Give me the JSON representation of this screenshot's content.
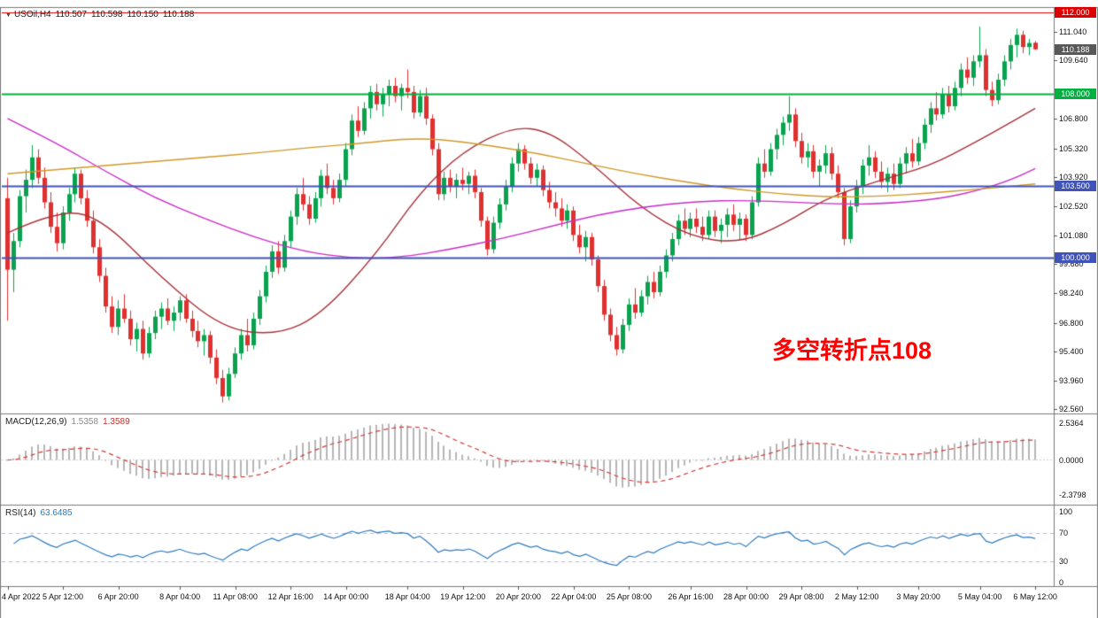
{
  "header": {
    "symbol": "USOil,H4",
    "open": "110.507",
    "high": "110.598",
    "low": "110.150",
    "close": "110.188"
  },
  "annotation": {
    "text": "多空转折点108",
    "color": "#ff0000"
  },
  "chart_data": {
    "type": "candlestick",
    "symbol": "USOil",
    "timeframe": "H4",
    "price_axis_ticks": [
      "111.040",
      "109.640",
      "106.800",
      "105.320",
      "103.920",
      "102.520",
      "101.080",
      "99.680",
      "98.240",
      "96.800",
      "95.400",
      "93.960",
      "92.560"
    ],
    "hlines": [
      {
        "price": 112.0,
        "label": "112.000",
        "color": "#dd0000",
        "width": 1.2
      },
      {
        "price": 108.0,
        "label": "108.000",
        "color": "#00b140",
        "width": 2
      },
      {
        "price": 103.5,
        "label": "103.500",
        "color": "#4053b8",
        "width": 2
      },
      {
        "price": 100.0,
        "label": "100.000",
        "color": "#4053b8",
        "width": 2
      }
    ],
    "current_price": {
      "value": 110.188,
      "label": "110.188",
      "bg": "#585858"
    },
    "colors": {
      "bull": "#0aa24f",
      "bear": "#e03131"
    },
    "candles": [
      [
        102.9,
        103.9,
        96.9,
        99.4
      ],
      [
        99.4,
        101.2,
        98.3,
        100.8
      ],
      [
        100.8,
        103.3,
        100.5,
        103.0
      ],
      [
        103.0,
        104.3,
        102.2,
        103.8
      ],
      [
        103.8,
        105.5,
        103.4,
        104.9
      ],
      [
        104.9,
        105.3,
        103.6,
        103.9
      ],
      [
        103.9,
        104.4,
        102.4,
        102.7
      ],
      [
        102.7,
        103.2,
        101.2,
        101.5
      ],
      [
        101.5,
        102.2,
        100.3,
        100.7
      ],
      [
        100.7,
        102.5,
        100.4,
        102.2
      ],
      [
        102.2,
        103.4,
        101.8,
        103.1
      ],
      [
        103.1,
        104.4,
        102.7,
        104.1
      ],
      [
        104.1,
        104.3,
        102.6,
        102.9
      ],
      [
        102.9,
        103.3,
        101.5,
        101.8
      ],
      [
        101.8,
        102.3,
        100.2,
        100.5
      ],
      [
        100.5,
        100.9,
        98.8,
        99.1
      ],
      [
        99.1,
        99.5,
        97.3,
        97.6
      ],
      [
        97.6,
        98.1,
        96.3,
        96.6
      ],
      [
        96.6,
        97.9,
        96.2,
        97.5
      ],
      [
        97.5,
        98.2,
        96.8,
        97.0
      ],
      [
        97.0,
        97.4,
        95.7,
        96.0
      ],
      [
        96.0,
        96.8,
        95.4,
        96.5
      ],
      [
        96.5,
        96.9,
        95.0,
        95.3
      ],
      [
        95.3,
        96.6,
        95.1,
        96.3
      ],
      [
        96.3,
        97.4,
        96.0,
        97.1
      ],
      [
        97.1,
        97.8,
        96.5,
        97.5
      ],
      [
        97.5,
        98.0,
        96.7,
        96.9
      ],
      [
        96.9,
        97.6,
        96.4,
        97.3
      ],
      [
        97.3,
        98.1,
        96.9,
        97.9
      ],
      [
        97.9,
        98.2,
        96.8,
        97.0
      ],
      [
        97.0,
        97.4,
        96.1,
        96.4
      ],
      [
        96.4,
        96.9,
        95.6,
        95.9
      ],
      [
        95.9,
        96.5,
        95.2,
        96.2
      ],
      [
        96.2,
        96.4,
        94.8,
        95.1
      ],
      [
        95.1,
        95.5,
        93.8,
        94.1
      ],
      [
        94.1,
        94.5,
        92.9,
        93.2
      ],
      [
        93.2,
        94.6,
        93.0,
        94.3
      ],
      [
        94.3,
        95.6,
        94.1,
        95.3
      ],
      [
        95.3,
        96.5,
        95.0,
        96.2
      ],
      [
        96.2,
        97.0,
        95.4,
        95.7
      ],
      [
        95.7,
        97.3,
        95.5,
        97.0
      ],
      [
        97.0,
        98.4,
        96.7,
        98.1
      ],
      [
        98.1,
        99.6,
        97.8,
        99.3
      ],
      [
        99.3,
        100.6,
        99.0,
        100.3
      ],
      [
        100.3,
        100.8,
        99.2,
        99.5
      ],
      [
        99.5,
        101.1,
        99.3,
        100.8
      ],
      [
        100.8,
        102.3,
        100.5,
        102.0
      ],
      [
        102.0,
        103.4,
        101.6,
        103.1
      ],
      [
        103.1,
        103.9,
        102.3,
        102.6
      ],
      [
        102.6,
        103.0,
        101.6,
        101.9
      ],
      [
        101.9,
        103.2,
        101.7,
        102.9
      ],
      [
        102.9,
        104.3,
        102.5,
        104.0
      ],
      [
        104.0,
        104.6,
        103.1,
        103.4
      ],
      [
        103.4,
        103.8,
        102.6,
        102.9
      ],
      [
        102.9,
        104.1,
        102.7,
        103.8
      ],
      [
        103.8,
        105.6,
        103.5,
        105.3
      ],
      [
        105.3,
        107.0,
        105.0,
        106.7
      ],
      [
        106.7,
        107.4,
        105.9,
        106.2
      ],
      [
        106.2,
        107.6,
        106.0,
        107.3
      ],
      [
        107.3,
        108.4,
        106.8,
        108.1
      ],
      [
        108.1,
        108.5,
        107.2,
        107.5
      ],
      [
        107.5,
        108.3,
        106.9,
        108.0
      ],
      [
        108.0,
        108.7,
        107.4,
        108.4
      ],
      [
        108.4,
        108.8,
        107.6,
        107.9
      ],
      [
        107.9,
        108.5,
        107.2,
        108.3
      ],
      [
        108.3,
        109.2,
        107.8,
        108.1
      ],
      [
        108.1,
        108.4,
        106.8,
        107.1
      ],
      [
        107.1,
        108.2,
        106.9,
        107.9
      ],
      [
        107.9,
        108.3,
        106.5,
        106.8
      ],
      [
        106.8,
        107.0,
        105.0,
        105.3
      ],
      [
        105.3,
        105.6,
        102.8,
        103.1
      ],
      [
        103.1,
        104.2,
        102.8,
        103.9
      ],
      [
        103.9,
        104.3,
        103.2,
        103.5
      ],
      [
        103.5,
        104.1,
        102.9,
        103.8
      ],
      [
        103.8,
        104.4,
        103.3,
        103.6
      ],
      [
        103.6,
        104.2,
        103.1,
        104.0
      ],
      [
        104.0,
        104.3,
        102.9,
        103.2
      ],
      [
        103.2,
        103.4,
        101.5,
        101.8
      ],
      [
        101.8,
        102.0,
        100.1,
        100.4
      ],
      [
        100.4,
        102.0,
        100.2,
        101.7
      ],
      [
        101.7,
        102.9,
        101.4,
        102.6
      ],
      [
        102.6,
        103.8,
        102.3,
        103.5
      ],
      [
        103.5,
        104.9,
        103.2,
        104.6
      ],
      [
        104.6,
        105.6,
        104.2,
        105.3
      ],
      [
        105.3,
        105.5,
        104.3,
        104.6
      ],
      [
        104.6,
        104.9,
        103.6,
        103.9
      ],
      [
        103.9,
        104.6,
        103.5,
        104.3
      ],
      [
        104.3,
        104.5,
        103.0,
        103.3
      ],
      [
        103.3,
        103.7,
        102.4,
        102.7
      ],
      [
        102.7,
        103.2,
        102.0,
        102.4
      ],
      [
        102.4,
        102.9,
        101.5,
        101.8
      ],
      [
        101.8,
        102.6,
        101.4,
        102.3
      ],
      [
        102.3,
        102.5,
        100.8,
        101.1
      ],
      [
        101.1,
        101.6,
        100.2,
        100.5
      ],
      [
        100.5,
        101.3,
        99.8,
        101.0
      ],
      [
        101.0,
        101.2,
        99.6,
        99.9
      ],
      [
        99.9,
        100.1,
        98.3,
        98.6
      ],
      [
        98.6,
        98.9,
        96.9,
        97.2
      ],
      [
        97.2,
        97.5,
        95.9,
        96.2
      ],
      [
        96.2,
        96.6,
        95.2,
        95.5
      ],
      [
        95.5,
        97.0,
        95.3,
        96.7
      ],
      [
        96.7,
        98.0,
        96.4,
        97.7
      ],
      [
        97.7,
        98.5,
        97.0,
        97.3
      ],
      [
        97.3,
        98.4,
        97.1,
        98.1
      ],
      [
        98.1,
        99.1,
        97.7,
        98.8
      ],
      [
        98.8,
        99.3,
        98.0,
        98.3
      ],
      [
        98.3,
        99.6,
        98.1,
        99.3
      ],
      [
        99.3,
        100.4,
        99.0,
        100.1
      ],
      [
        100.1,
        101.2,
        99.8,
        100.9
      ],
      [
        100.9,
        102.1,
        100.6,
        101.8
      ],
      [
        101.8,
        102.4,
        101.1,
        101.4
      ],
      [
        101.4,
        102.2,
        101.0,
        101.9
      ],
      [
        101.9,
        102.4,
        101.2,
        101.5
      ],
      [
        101.5,
        102.0,
        100.8,
        101.1
      ],
      [
        101.1,
        102.3,
        100.9,
        102.0
      ],
      [
        102.0,
        102.3,
        101.0,
        101.3
      ],
      [
        101.3,
        101.9,
        100.7,
        101.6
      ],
      [
        101.6,
        102.4,
        101.0,
        102.1
      ],
      [
        102.1,
        102.6,
        101.3,
        101.6
      ],
      [
        101.6,
        102.2,
        100.9,
        101.9
      ],
      [
        101.9,
        102.1,
        100.8,
        101.1
      ],
      [
        101.1,
        103.0,
        100.9,
        102.7
      ],
      [
        102.7,
        104.9,
        102.5,
        104.6
      ],
      [
        104.6,
        105.3,
        103.9,
        104.2
      ],
      [
        104.2,
        105.6,
        104.0,
        105.3
      ],
      [
        105.3,
        106.3,
        104.8,
        106.0
      ],
      [
        106.0,
        106.9,
        105.5,
        106.6
      ],
      [
        106.6,
        107.9,
        106.2,
        107.0
      ],
      [
        107.0,
        107.3,
        105.4,
        105.7
      ],
      [
        105.7,
        106.1,
        104.6,
        104.9
      ],
      [
        104.9,
        105.6,
        104.4,
        105.2
      ],
      [
        105.2,
        105.5,
        103.9,
        104.2
      ],
      [
        104.2,
        104.8,
        103.5,
        104.5
      ],
      [
        104.5,
        105.5,
        104.1,
        105.1
      ],
      [
        105.1,
        105.4,
        103.8,
        104.1
      ],
      [
        104.1,
        104.5,
        102.9,
        103.2
      ],
      [
        103.2,
        103.4,
        100.6,
        100.9
      ],
      [
        100.9,
        102.8,
        100.7,
        102.5
      ],
      [
        102.5,
        103.8,
        102.2,
        103.5
      ],
      [
        103.5,
        104.8,
        103.1,
        104.5
      ],
      [
        104.5,
        105.5,
        104.0,
        104.9
      ],
      [
        104.9,
        105.2,
        103.9,
        104.2
      ],
      [
        104.2,
        104.7,
        103.4,
        103.7
      ],
      [
        103.7,
        104.4,
        103.2,
        104.1
      ],
      [
        104.1,
        104.6,
        103.3,
        103.6
      ],
      [
        103.6,
        104.9,
        103.4,
        104.6
      ],
      [
        104.6,
        105.4,
        104.1,
        105.1
      ],
      [
        105.1,
        105.8,
        104.4,
        104.7
      ],
      [
        104.7,
        105.9,
        104.5,
        105.6
      ],
      [
        105.6,
        106.8,
        105.3,
        106.5
      ],
      [
        106.5,
        107.6,
        106.1,
        107.3
      ],
      [
        107.3,
        108.1,
        106.7,
        107.0
      ],
      [
        107.0,
        108.3,
        106.8,
        108.0
      ],
      [
        108.0,
        108.4,
        107.1,
        107.4
      ],
      [
        107.4,
        108.6,
        107.2,
        108.3
      ],
      [
        108.3,
        109.5,
        107.9,
        109.2
      ],
      [
        109.2,
        109.8,
        108.5,
        108.8
      ],
      [
        108.8,
        109.9,
        108.4,
        109.6
      ],
      [
        109.6,
        111.3,
        109.3,
        109.9
      ],
      [
        109.9,
        110.2,
        107.9,
        108.2
      ],
      [
        108.2,
        108.6,
        107.4,
        107.7
      ],
      [
        107.7,
        109.0,
        107.5,
        108.7
      ],
      [
        108.7,
        109.9,
        108.4,
        109.6
      ],
      [
        109.6,
        110.7,
        109.2,
        110.4
      ],
      [
        110.4,
        111.2,
        109.8,
        110.9
      ],
      [
        110.9,
        111.1,
        110.0,
        110.3
      ],
      [
        110.3,
        110.7,
        109.9,
        110.5
      ],
      [
        110.51,
        110.6,
        110.15,
        110.19
      ]
    ],
    "ma_lines": [
      {
        "name": "ma-dark-red",
        "color": "#a8323a",
        "points": [
          [
            0,
            101.2
          ],
          [
            8,
            102.3
          ],
          [
            15,
            102.0
          ],
          [
            25,
            99.0
          ],
          [
            35,
            96.5
          ],
          [
            44,
            96.2
          ],
          [
            51,
            97.2
          ],
          [
            60,
            100.2
          ],
          [
            67,
            103.2
          ],
          [
            74,
            105.2
          ],
          [
            82,
            106.4
          ],
          [
            88,
            106.2
          ],
          [
            95,
            104.6
          ],
          [
            103,
            102.4
          ],
          [
            111,
            101.0
          ],
          [
            119,
            100.7
          ],
          [
            126,
            101.6
          ],
          [
            133,
            102.9
          ],
          [
            141,
            103.7
          ],
          [
            150,
            104.5
          ],
          [
            157,
            105.6
          ],
          [
            163,
            106.6
          ],
          [
            167,
            107.3
          ]
        ]
      },
      {
        "name": "ma-magenta",
        "color": "#c92cc9",
        "points": [
          [
            0,
            106.8
          ],
          [
            8,
            105.6
          ],
          [
            16,
            104.2
          ],
          [
            24,
            102.9
          ],
          [
            32,
            101.9
          ],
          [
            40,
            101.0
          ],
          [
            48,
            100.3
          ],
          [
            56,
            99.95
          ],
          [
            64,
            100.0
          ],
          [
            72,
            100.4
          ],
          [
            80,
            100.9
          ],
          [
            88,
            101.5
          ],
          [
            96,
            102.1
          ],
          [
            104,
            102.5
          ],
          [
            112,
            102.75
          ],
          [
            120,
            102.8
          ],
          [
            128,
            102.7
          ],
          [
            136,
            102.6
          ],
          [
            144,
            102.65
          ],
          [
            152,
            102.9
          ],
          [
            158,
            103.3
          ],
          [
            163,
            103.8
          ],
          [
            167,
            104.35
          ]
        ]
      },
      {
        "name": "ma-orange",
        "color": "#cf9a28",
        "points": [
          [
            0,
            104.1
          ],
          [
            10,
            104.35
          ],
          [
            20,
            104.6
          ],
          [
            30,
            104.85
          ],
          [
            40,
            105.1
          ],
          [
            50,
            105.4
          ],
          [
            58,
            105.6
          ],
          [
            64,
            105.8
          ],
          [
            70,
            105.8
          ],
          [
            78,
            105.5
          ],
          [
            86,
            105.1
          ],
          [
            94,
            104.6
          ],
          [
            102,
            104.1
          ],
          [
            110,
            103.7
          ],
          [
            118,
            103.35
          ],
          [
            126,
            103.1
          ],
          [
            134,
            102.95
          ],
          [
            142,
            103.0
          ],
          [
            150,
            103.15
          ],
          [
            158,
            103.35
          ],
          [
            167,
            103.6
          ]
        ]
      }
    ],
    "time_labels": [
      {
        "text": "4 Apr 2022",
        "i": 0
      },
      {
        "text": "5 Apr 12:00",
        "i": 9
      },
      {
        "text": "6 Apr 20:00",
        "i": 18
      },
      {
        "text": "8 Apr 04:00",
        "i": 28
      },
      {
        "text": "11 Apr 08:00",
        "i": 37
      },
      {
        "text": "12 Apr 16:00",
        "i": 46
      },
      {
        "text": "14 Apr 00:00",
        "i": 55
      },
      {
        "text": "18 Apr 04:00",
        "i": 65
      },
      {
        "text": "19 Apr 12:00",
        "i": 74
      },
      {
        "text": "20 Apr 20:00",
        "i": 83
      },
      {
        "text": "22 Apr 04:00",
        "i": 92
      },
      {
        "text": "25 Apr 08:00",
        "i": 101
      },
      {
        "text": "26 Apr 16:00",
        "i": 111
      },
      {
        "text": "28 Apr 00:00",
        "i": 120
      },
      {
        "text": "29 Apr 08:00",
        "i": 129
      },
      {
        "text": "2 May 12:00",
        "i": 138
      },
      {
        "text": "3 May 20:00",
        "i": 148
      },
      {
        "text": "5 May 04:00",
        "i": 158
      },
      {
        "text": "6 May 12:00",
        "i": 167
      }
    ],
    "macd": {
      "label": "MACD(12,26,9)",
      "value_main": "1.5358",
      "value_signal": "1.3589",
      "fast": 12,
      "slow": 26,
      "signal": 9,
      "axis": [
        "2.5364",
        "0.0000",
        "-2.3798"
      ],
      "hist_color": "#b6b6b6",
      "signal_color": "#d23a3a"
    },
    "rsi": {
      "label": "RSI(14)",
      "value": "63.6485",
      "period": 14,
      "levels": [
        "100",
        "70",
        "30",
        "0"
      ],
      "color": "#2e7bbf"
    }
  }
}
